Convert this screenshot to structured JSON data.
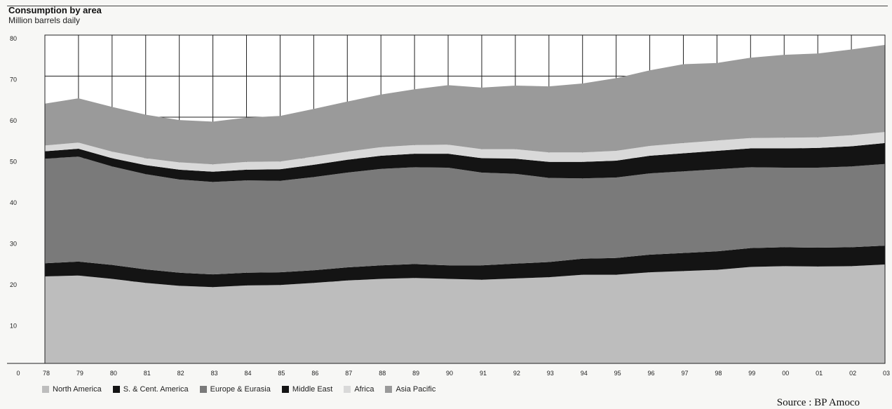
{
  "chart_data": {
    "type": "area",
    "title": "Consumption by area",
    "ylabel": "Million barrels daily",
    "xlabel": "",
    "x": [
      "78",
      "79",
      "80",
      "81",
      "82",
      "83",
      "84",
      "85",
      "86",
      "87",
      "88",
      "89",
      "90",
      "91",
      "92",
      "93",
      "94",
      "95",
      "96",
      "97",
      "98",
      "99",
      "00",
      "01",
      "02",
      "03"
    ],
    "y_ticks": [
      "0",
      "10",
      "20",
      "30",
      "40",
      "50",
      "60",
      "70",
      "80"
    ],
    "ylim": [
      0,
      80
    ],
    "stacked": true,
    "series": [
      {
        "name": "North America",
        "color": "#bdbdbd",
        "values": [
          21.2,
          21.4,
          20.6,
          19.6,
          18.9,
          18.6,
          19.0,
          19.1,
          19.6,
          20.2,
          20.6,
          20.8,
          20.6,
          20.4,
          20.7,
          21.0,
          21.6,
          21.6,
          22.2,
          22.5,
          22.8,
          23.5,
          23.7,
          23.6,
          23.7,
          24.1
        ]
      },
      {
        "name": "S. & Cent. America",
        "color": "#141414",
        "values": [
          3.2,
          3.4,
          3.4,
          3.3,
          3.2,
          3.1,
          3.1,
          3.1,
          3.1,
          3.2,
          3.3,
          3.4,
          3.3,
          3.5,
          3.6,
          3.7,
          3.9,
          4.1,
          4.3,
          4.4,
          4.5,
          4.6,
          4.6,
          4.6,
          4.6,
          4.6
        ]
      },
      {
        "name": "Europe & Eurasia",
        "color": "#7a7a7a",
        "values": [
          25.5,
          25.6,
          24.0,
          23.2,
          22.7,
          22.5,
          22.5,
          22.3,
          22.7,
          23.1,
          23.5,
          23.6,
          23.8,
          22.6,
          21.9,
          20.5,
          19.6,
          19.6,
          19.8,
          19.9,
          20.0,
          19.7,
          19.4,
          19.5,
          19.7,
          19.9
        ]
      },
      {
        "name": "Middle East",
        "color": "#141414",
        "values": [
          1.8,
          1.9,
          2.0,
          2.2,
          2.4,
          2.5,
          2.6,
          2.8,
          3.0,
          3.1,
          3.2,
          3.3,
          3.4,
          3.5,
          3.7,
          3.9,
          4.0,
          4.1,
          4.3,
          4.4,
          4.5,
          4.6,
          4.7,
          4.8,
          4.9,
          5.1
        ]
      },
      {
        "name": "Africa",
        "color": "#d9d9d9",
        "values": [
          1.4,
          1.5,
          1.6,
          1.7,
          1.8,
          1.8,
          1.9,
          1.9,
          2.0,
          2.0,
          2.1,
          2.1,
          2.2,
          2.2,
          2.3,
          2.3,
          2.3,
          2.4,
          2.4,
          2.5,
          2.5,
          2.5,
          2.6,
          2.6,
          2.7,
          2.7
        ]
      },
      {
        "name": "Asia Pacific",
        "color": "#9a9a9a",
        "values": [
          10.2,
          10.8,
          10.9,
          10.6,
          10.3,
          10.4,
          10.8,
          11.1,
          11.6,
          12.2,
          12.8,
          13.6,
          14.5,
          15.0,
          15.5,
          16.1,
          16.8,
          17.7,
          18.4,
          19.2,
          18.9,
          19.6,
          20.2,
          20.4,
          20.9,
          21.2
        ]
      }
    ]
  },
  "legend_labels": [
    "North America",
    "S. & Cent. America",
    "Europe & Eurasia",
    "Middle East",
    "Africa",
    "Asia Pacific"
  ],
  "source": "Source : BP Amoco"
}
